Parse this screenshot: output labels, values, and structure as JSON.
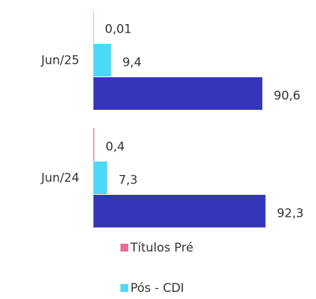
{
  "chart_data": {
    "type": "barh",
    "categories": [
      "Jun/25",
      "Jun/24"
    ],
    "series": [
      {
        "name": "Títulos Pré",
        "color": "#f06a94",
        "values": [
          0.01,
          0.4
        ],
        "value_labels": [
          "0,01",
          "0,4"
        ]
      },
      {
        "name": "Pós - CDI",
        "color": "#4dd9f5",
        "values": [
          9.4,
          7.3
        ],
        "value_labels": [
          "9,4",
          "7,3"
        ]
      },
      {
        "color": "#3535b8",
        "values": [
          90.6,
          92.3
        ],
        "value_labels": [
          "90,6",
          "92,3"
        ]
      }
    ],
    "xlim": [
      0,
      100
    ]
  }
}
